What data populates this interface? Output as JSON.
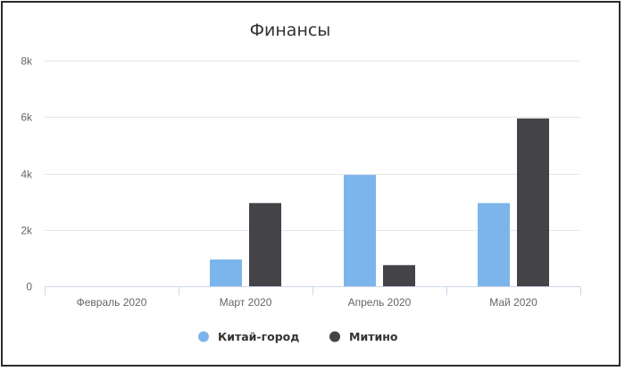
{
  "chart_data": {
    "type": "bar",
    "title": "Финансы",
    "categories": [
      "Февраль 2020",
      "Март 2020",
      "Апрель 2020",
      "Май 2020"
    ],
    "series": [
      {
        "name": "Китай-город",
        "color": "#7cb5ec",
        "values": [
          0,
          950,
          3950,
          2950
        ]
      },
      {
        "name": "Митино",
        "color": "#434348",
        "values": [
          0,
          2950,
          750,
          5950
        ]
      }
    ],
    "ylim": [
      0,
      8000
    ],
    "yticks": [
      {
        "value": 0,
        "label": "0"
      },
      {
        "value": 2000,
        "label": "2k"
      },
      {
        "value": 4000,
        "label": "4k"
      },
      {
        "value": 6000,
        "label": "6k"
      },
      {
        "value": 8000,
        "label": "8k"
      }
    ],
    "xlabel": "",
    "ylabel": "",
    "grid": true,
    "legend_position": "bottom-center"
  }
}
